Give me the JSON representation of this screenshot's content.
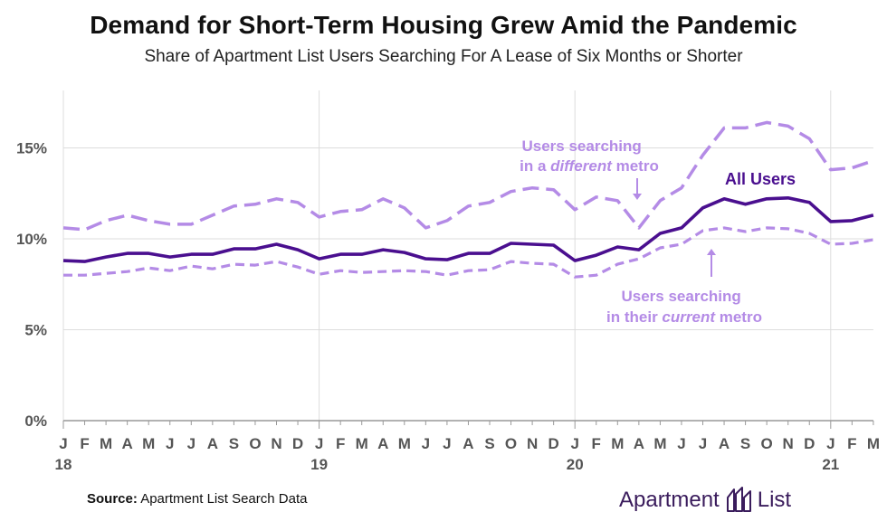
{
  "header": {
    "title": "Demand for Short-Term Housing Grew Amid the Pandemic",
    "subtitle": "Share of Apartment List Users Searching For A Lease of Six Months or Shorter"
  },
  "footer": {
    "source_label": "Source:",
    "source_text": "Apartment List Search Data",
    "brand_left": "Apartment",
    "brand_right": "List",
    "brand_icon": "apartment-list-logo-icon"
  },
  "colors": {
    "all_users": "#4a0f8f",
    "different_metro": "#b48be6",
    "current_metro": "#b48be6",
    "grid": "#dddddd",
    "axis_text": "#555555"
  },
  "chart_data": {
    "type": "line",
    "title": "Demand for Short-Term Housing Grew Amid the Pandemic",
    "subtitle": "Share of Apartment List Users Searching For A Lease of Six Months or Shorter",
    "xlabel": "",
    "ylabel": "",
    "ylim": [
      0,
      17.5
    ],
    "yticks": [
      0,
      5,
      10,
      15
    ],
    "ytick_labels": [
      "0%",
      "5%",
      "10%",
      "15%"
    ],
    "grid": true,
    "month_labels": [
      "J",
      "F",
      "M",
      "A",
      "M",
      "J",
      "J",
      "A",
      "S",
      "O",
      "N",
      "D",
      "J",
      "F",
      "M",
      "A",
      "M",
      "J",
      "J",
      "A",
      "S",
      "O",
      "N",
      "D",
      "J",
      "F",
      "M",
      "A",
      "M",
      "J",
      "J",
      "A",
      "S",
      "O",
      "N",
      "D",
      "J",
      "F",
      "M"
    ],
    "year_labels": [
      {
        "label": "18",
        "month_index": 0
      },
      {
        "label": "19",
        "month_index": 12
      },
      {
        "label": "20",
        "month_index": 24
      },
      {
        "label": "21",
        "month_index": 36
      }
    ],
    "series": [
      {
        "name": "Users searching in a different metro",
        "style": "dashed",
        "values": [
          10.6,
          10.5,
          11.0,
          11.3,
          11.0,
          10.8,
          10.8,
          11.3,
          11.8,
          11.9,
          12.2,
          12.0,
          11.2,
          11.5,
          11.6,
          12.2,
          11.7,
          10.6,
          11.0,
          11.8,
          12.0,
          12.6,
          12.8,
          12.7,
          11.6,
          12.3,
          12.1,
          10.6,
          12.1,
          12.8,
          14.6,
          16.1,
          16.1,
          16.4,
          16.2,
          15.5,
          13.8,
          13.9,
          14.3
        ]
      },
      {
        "name": "All Users",
        "style": "solid",
        "values": [
          8.8,
          8.75,
          9.0,
          9.2,
          9.2,
          9.0,
          9.15,
          9.15,
          9.45,
          9.45,
          9.7,
          9.4,
          8.9,
          9.15,
          9.15,
          9.4,
          9.25,
          8.9,
          8.85,
          9.2,
          9.2,
          9.75,
          9.7,
          9.65,
          8.8,
          9.1,
          9.55,
          9.4,
          10.3,
          10.6,
          11.7,
          12.2,
          11.9,
          12.2,
          12.25,
          12.0,
          10.95,
          11.0,
          11.3
        ]
      },
      {
        "name": "Users searching in their current metro",
        "style": "dashed",
        "values": [
          8.0,
          8.0,
          8.1,
          8.2,
          8.4,
          8.25,
          8.5,
          8.35,
          8.6,
          8.55,
          8.75,
          8.45,
          8.05,
          8.25,
          8.15,
          8.2,
          8.25,
          8.2,
          8.0,
          8.25,
          8.3,
          8.75,
          8.65,
          8.6,
          7.9,
          8.0,
          8.6,
          8.9,
          9.5,
          9.7,
          10.45,
          10.6,
          10.4,
          10.6,
          10.55,
          10.3,
          9.7,
          9.75,
          9.95
        ]
      }
    ],
    "annotations": [
      {
        "series": "Users searching in a different metro",
        "line1": "Users searching",
        "line2_prefix": "in a ",
        "line2_emphasis": "different",
        "line2_suffix": " metro"
      },
      {
        "series": "All Users",
        "text": "All Users"
      },
      {
        "series": "Users searching in their current metro",
        "line1": "Users searching",
        "line2_prefix": "in their ",
        "line2_emphasis": "current",
        "line2_suffix": " metro"
      }
    ]
  }
}
